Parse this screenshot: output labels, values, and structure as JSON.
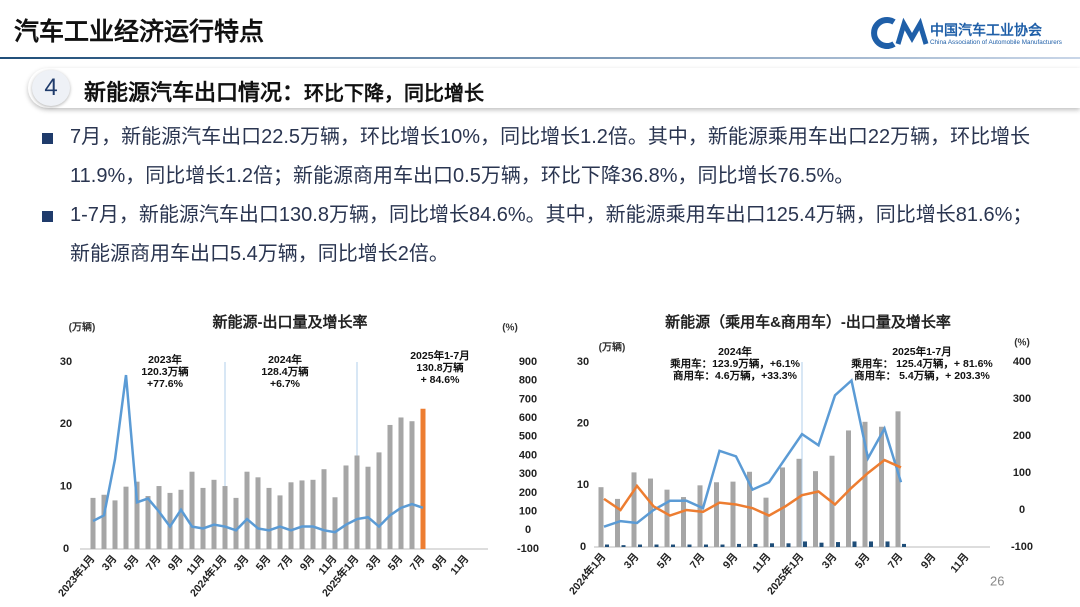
{
  "header": {
    "title": "汽车工业经济运行特点",
    "logo_cn": "中国汽车工业协会",
    "logo_en": "China Association of Automobile Manufacturers"
  },
  "section": {
    "number": "4",
    "title": "新能源汽车出口情况：",
    "subtitle": "环比下降，同比增长"
  },
  "bullets": [
    "7月，新能源汽车出口22.5万辆，环比增长10%，同比增长1.2倍。其中，新能源乘用车出口22万辆，环比增长11.9%，同比增长1.2倍；新能源商用车出口0.5万辆，环比下降36.8%，同比增长76.5%。",
    "1-7月，新能源汽车出口130.8万辆，同比增长84.6%。其中，新能源乘用车出口125.4万辆，同比增长81.6%；新能源商用车出口5.4万辆，同比增长2倍。"
  ],
  "page_number": "26",
  "chart_data": [
    {
      "type": "bar_line",
      "title": "新能源-出口量及增长率",
      "y_label": "(万辆)",
      "y2_label": "(%)",
      "categories": [
        "2023年1月",
        null,
        "3月",
        null,
        "5月",
        null,
        "7月",
        null,
        "9月",
        null,
        "11月",
        null,
        "2024年1月",
        null,
        "3月",
        null,
        "5月",
        null,
        "7月",
        null,
        "9月",
        null,
        "11月",
        null,
        "2025年1月",
        null,
        "3月",
        null,
        "5月",
        null,
        "7月",
        null,
        "9月",
        null,
        "11月"
      ],
      "series": [
        {
          "type": "bar",
          "color": "#a6a6a6",
          "values": [
            8.2,
            8.7,
            7.8,
            10,
            10.8,
            8.5,
            10.1,
            9,
            9.5,
            12.4,
            9.8,
            11.1,
            10.1,
            8.2,
            12.4,
            11.5,
            9.8,
            8.6,
            10.7,
            11,
            11.1,
            12.8,
            8.3,
            13.4,
            15,
            13.2,
            15.5,
            19.9,
            21.1,
            20.5,
            22.5,
            null,
            null,
            null,
            null
          ],
          "colors": [
            "#a6a6a6",
            "#a6a6a6",
            "#a6a6a6",
            "#a6a6a6",
            "#a6a6a6",
            "#a6a6a6",
            "#a6a6a6",
            "#a6a6a6",
            "#a6a6a6",
            "#a6a6a6",
            "#a6a6a6",
            "#a6a6a6",
            "#a6a6a6",
            "#a6a6a6",
            "#a6a6a6",
            "#a6a6a6",
            "#a6a6a6",
            "#a6a6a6",
            "#a6a6a6",
            "#a6a6a6",
            "#a6a6a6",
            "#a6a6a6",
            "#a6a6a6",
            "#a6a6a6",
            "#a6a6a6",
            "#a6a6a6",
            "#a6a6a6",
            "#a6a6a6",
            "#a6a6a6",
            "#a6a6a6",
            "#ed7d31",
            null,
            null,
            null,
            null
          ]
        },
        {
          "type": "line",
          "axis": "y2",
          "color": "#5b9bd5",
          "values": [
            50,
            80,
            380,
            830,
            150,
            170,
            100,
            20,
            110,
            20,
            10,
            30,
            20,
            0,
            60,
            10,
            0,
            20,
            0,
            20,
            20,
            0,
            -10,
            30,
            60,
            70,
            20,
            80,
            120,
            140,
            120,
            null,
            null,
            null,
            null
          ]
        }
      ],
      "ylim": [
        0,
        30
      ],
      "yticks": [
        0,
        10,
        20,
        30
      ],
      "y2lim": [
        -100,
        900
      ],
      "y2ticks": [
        -100,
        0,
        100,
        200,
        300,
        400,
        500,
        600,
        700,
        800,
        900
      ],
      "annotations": [
        [
          "2023年",
          "120.3万辆",
          "+77.6%"
        ],
        [
          "2024年",
          "128.4万辆",
          "+6.7%"
        ],
        [
          "2025年1-7月",
          "130.8万辆",
          "+ 84.6%"
        ]
      ]
    },
    {
      "type": "bar_line",
      "title": "新能源（乘用车&商用车）-出口量及增长率",
      "y_label": "(万辆)",
      "y2_label": "(%)",
      "categories": [
        "2024年1月",
        null,
        "3月",
        null,
        "5月",
        null,
        "7月",
        null,
        "9月",
        null,
        "11月",
        null,
        "2025年1月",
        null,
        "3月",
        null,
        "5月",
        null,
        "7月",
        null,
        "9月",
        null,
        "11月"
      ],
      "series": [
        {
          "type": "bar",
          "color": "#a6a6a6",
          "values": [
            9.7,
            7.8,
            12.1,
            11.1,
            9.3,
            8.1,
            10,
            10.5,
            10.6,
            12.2,
            8,
            12.9,
            14.3,
            12.3,
            14.8,
            18.9,
            20.3,
            19.5,
            22,
            null,
            null,
            null,
            null
          ]
        },
        {
          "type": "bar",
          "color": "#1f4e79",
          "values": [
            0.4,
            0.3,
            0.4,
            0.4,
            0.4,
            0.4,
            0.4,
            0.4,
            0.5,
            0.5,
            0.6,
            0.6,
            0.9,
            0.7,
            0.8,
            0.9,
            0.9,
            0.9,
            0.5,
            null,
            null,
            null,
            null
          ]
        },
        {
          "type": "line",
          "axis": "y2",
          "color": "#5b9bd5",
          "values": [
            -45,
            -30,
            -35,
            0,
            25,
            25,
            5,
            160,
            145,
            55,
            75,
            140,
            205,
            175,
            310,
            350,
            140,
            220,
            75,
            null,
            null,
            null,
            null
          ]
        },
        {
          "type": "line",
          "axis": "y2",
          "color": "#ed7d31",
          "values": [
            30,
            0,
            65,
            10,
            -15,
            0,
            -5,
            20,
            15,
            5,
            -15,
            10,
            40,
            50,
            15,
            60,
            100,
            135,
            115,
            null,
            null,
            null,
            null
          ]
        }
      ],
      "ylim": [
        0,
        30
      ],
      "yticks": [
        0,
        10,
        20,
        30
      ],
      "y2lim": [
        -100,
        400
      ],
      "y2ticks": [
        -100,
        0,
        100,
        200,
        300,
        400
      ],
      "annotations": [
        [
          "2024年",
          "乘用车：123.9万辆，+6.1%",
          "商用车：4.6万辆，+33.3%"
        ],
        [
          "2025年1-7月",
          "乘用车：  125.4万辆，+ 81.6%",
          "商用车：  5.4万辆，+ 203.3%"
        ]
      ]
    }
  ]
}
